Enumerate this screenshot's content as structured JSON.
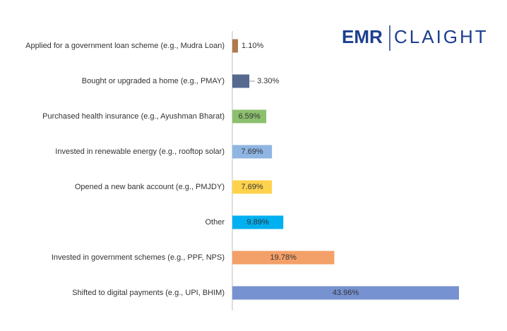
{
  "chart_data": {
    "type": "hbar",
    "categories": [
      "Applied for a government loan scheme (e.g., Mudra Loan)",
      "Bought or upgraded a home (e.g., PMAY)",
      "Purchased health insurance (e.g., Ayushman Bharat)",
      "Invested in renewable energy (e.g., rooftop solar)",
      "Opened a new bank account (e.g., PMJDY)",
      "Other",
      "Invested in government schemes (e.g., PPF, NPS)",
      "Shifted to digital payments (e.g., UPI, BHIM)"
    ],
    "values": [
      1.1,
      3.3,
      6.59,
      7.69,
      7.69,
      9.89,
      19.78,
      43.96
    ],
    "value_labels": [
      "1.10%",
      "3.30%",
      "6.59%",
      "7.69%",
      "7.69%",
      "9.89%",
      "19.78%",
      "43.96%"
    ],
    "colors": [
      "#b07a4f",
      "#56698f",
      "#8cbf6e",
      "#8fb5e3",
      "#ffd24d",
      "#00b0f0",
      "#f4a069",
      "#7792d1"
    ]
  },
  "logo": {
    "brand": "EMR",
    "partner": "CLAIGHT"
  }
}
